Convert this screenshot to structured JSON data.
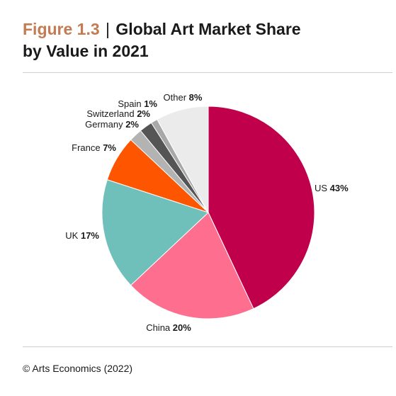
{
  "header": {
    "figure_number": "Figure 1.3",
    "separator": "|",
    "title_line1": "Global Art Market Share",
    "title_line2": "by Value in 2021"
  },
  "source": "© Arts Economics (2022)",
  "chart_data": {
    "type": "pie",
    "title": "Global Art Market Share by Value in 2021",
    "start_angle_deg": 0,
    "direction": "clockwise",
    "slices": [
      {
        "name": "US",
        "label": "43%",
        "value": 43,
        "color": "#c0004a"
      },
      {
        "name": "China",
        "label": "20%",
        "value": 20,
        "color": "#fe6e8e"
      },
      {
        "name": "UK",
        "label": "17%",
        "value": 17,
        "color": "#6fbfba"
      },
      {
        "name": "France",
        "label": "7%",
        "value": 7,
        "color": "#fe5500"
      },
      {
        "name": "Germany",
        "label": "2%",
        "value": 2,
        "color": "#b3b3b3"
      },
      {
        "name": "Switzerland",
        "label": "2%",
        "value": 2,
        "color": "#555555"
      },
      {
        "name": "Spain",
        "label": "1%",
        "value": 1,
        "color": "#a8a8a8"
      },
      {
        "name": "Other",
        "label": "8%",
        "value": 8,
        "color": "#ebebeb"
      }
    ]
  }
}
